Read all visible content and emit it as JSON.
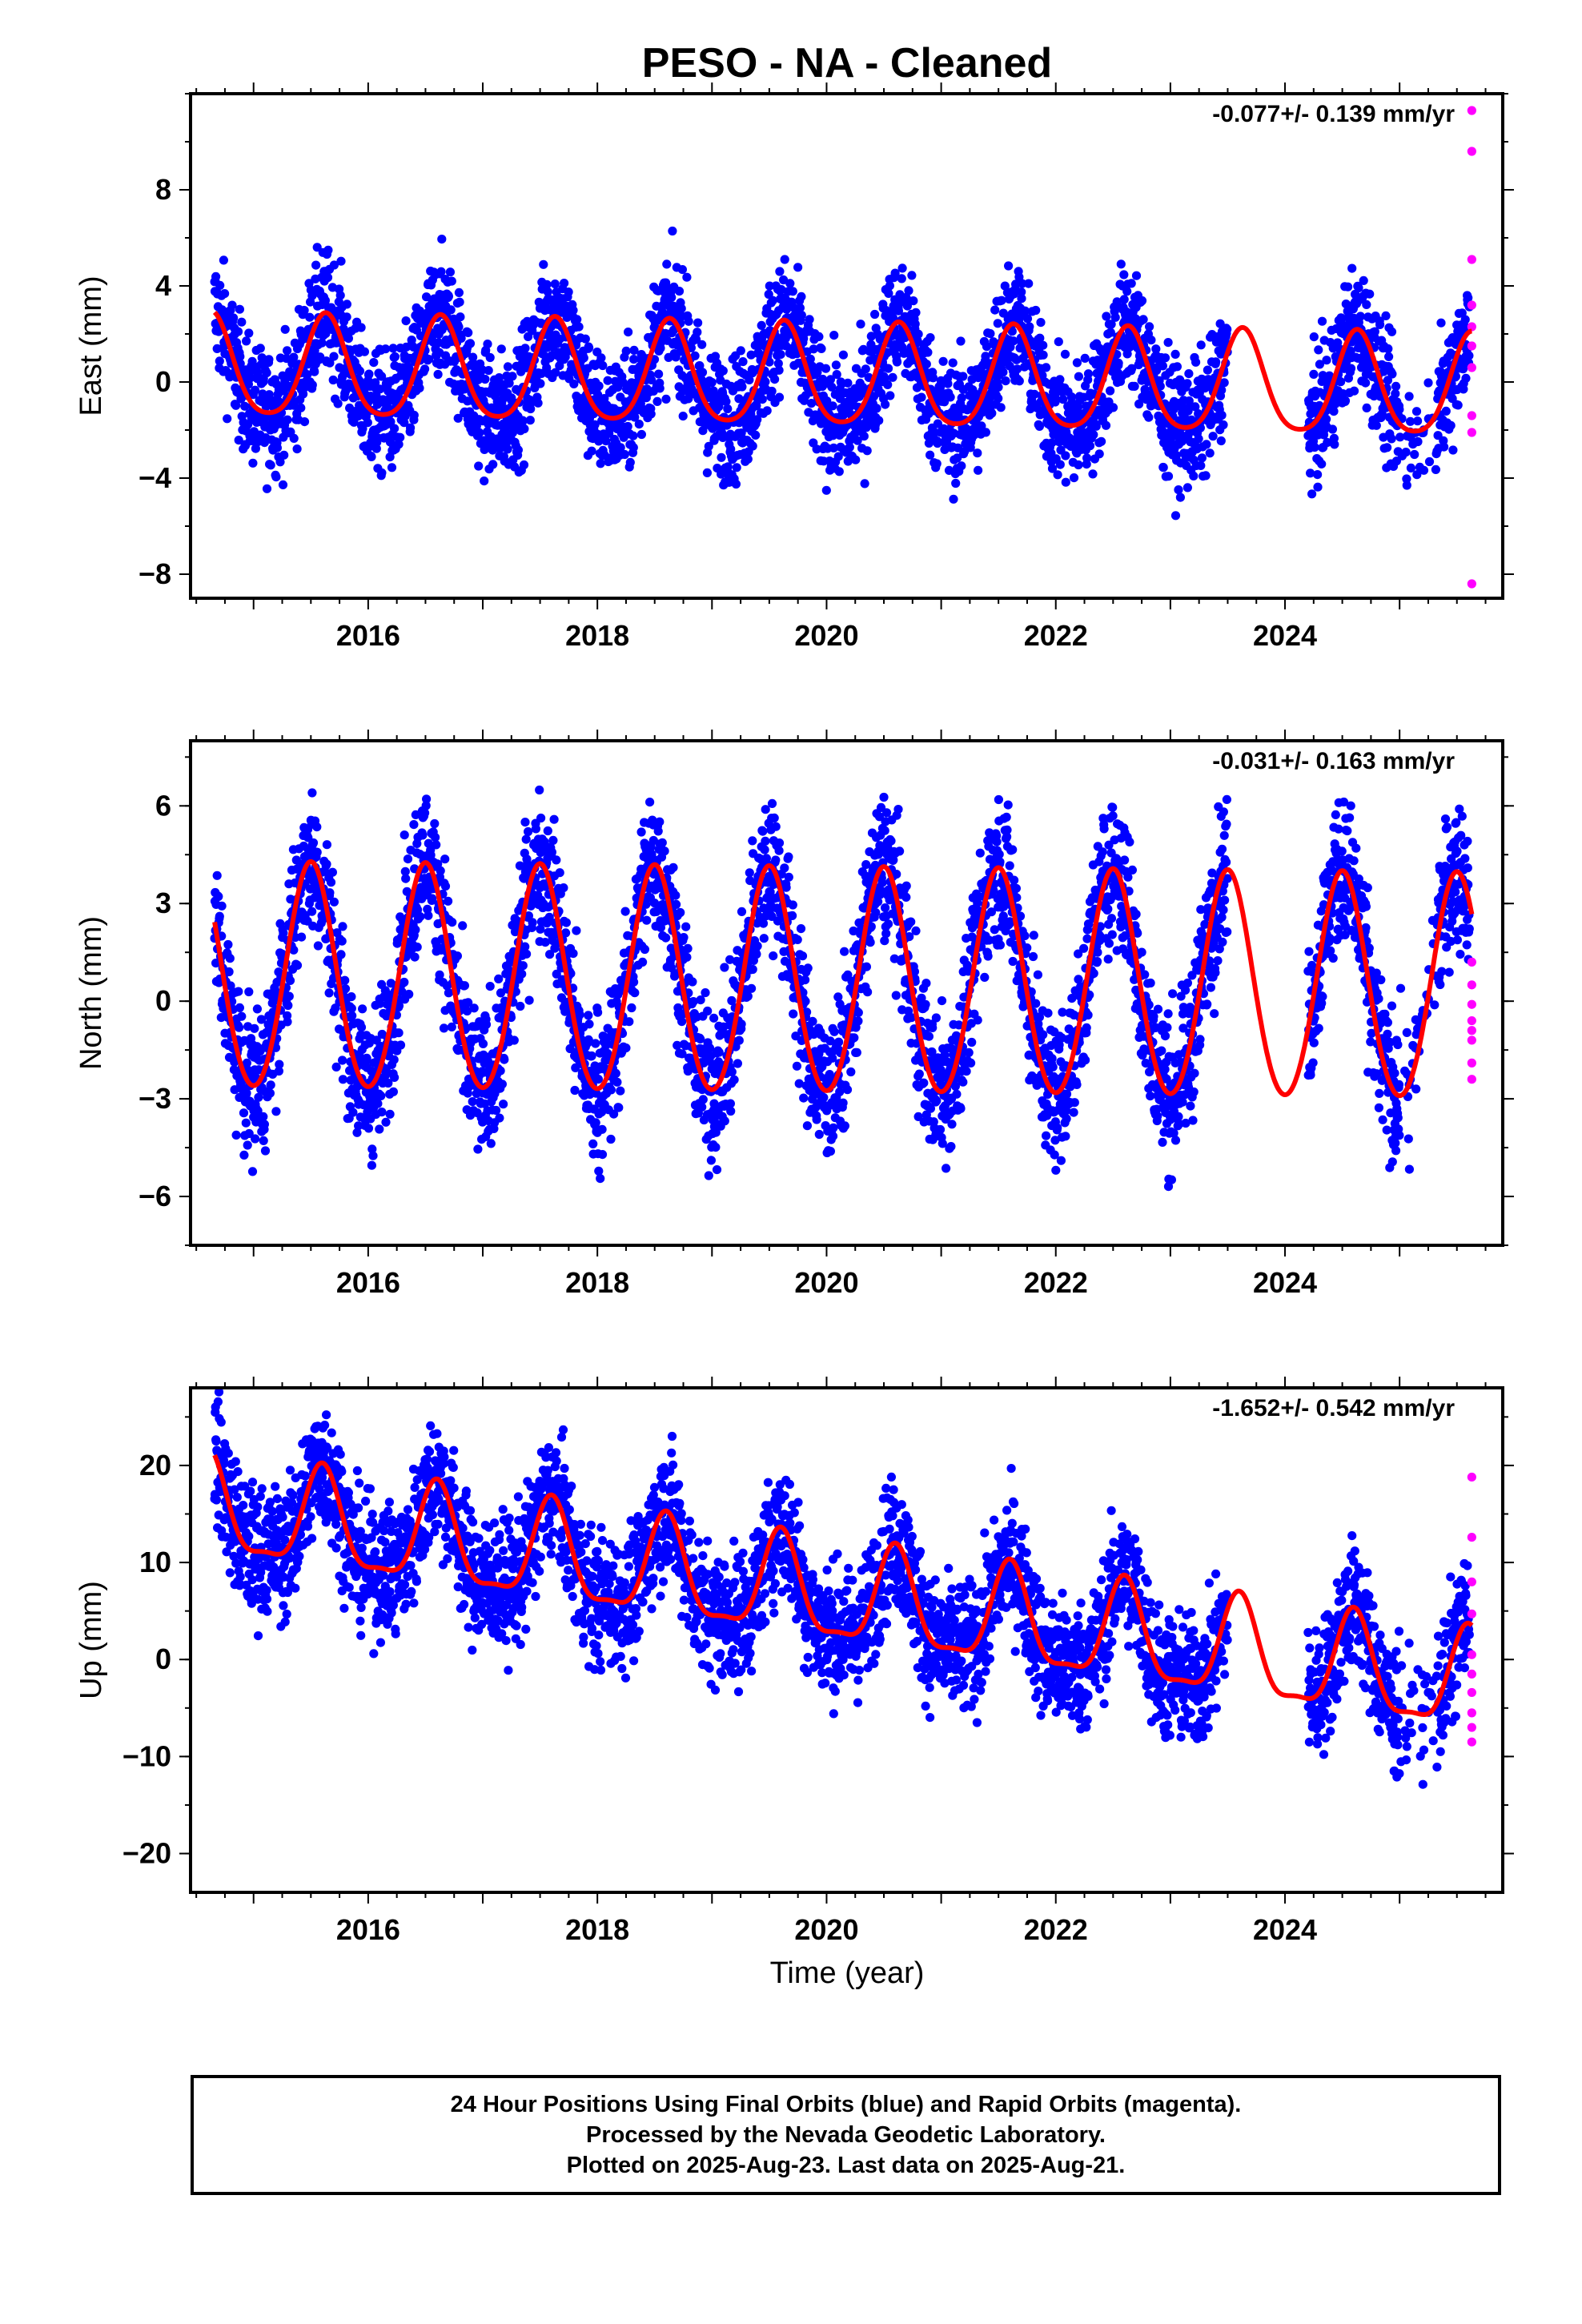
{
  "title": "PESO  - NA - Cleaned",
  "colors": {
    "final_orbits": "#0000ff",
    "rapid_orbits": "#ff00ff",
    "model_fit": "#ff0000",
    "frame": "#000000"
  },
  "x_axis_label": "Time (year)",
  "footer": {
    "line1": "24 Hour Positions Using Final Orbits (blue) and Rapid Orbits (magenta).",
    "line2": "Processed by the Nevada Geodetic Laboratory.",
    "line3": "Plotted on 2025-Aug-23. Last data on 2025-Aug-21."
  },
  "chart_data": [
    {
      "type": "scatter",
      "component": "east",
      "ylabel": "East (mm)",
      "rate_text": "-0.077+/- 0.139 mm/yr",
      "xlim": [
        2014.45,
        2025.9
      ],
      "ylim": [
        -9,
        12
      ],
      "x_ticks": [
        2016,
        2018,
        2020,
        2022,
        2024
      ],
      "y_ticks": [
        -8,
        -4,
        0,
        4,
        8
      ],
      "data_span": [
        2014.66,
        2025.63
      ],
      "gap": [
        2023.5,
        2024.2
      ],
      "scatter_noise_mm": 1.25,
      "model": {
        "offset": 0.1,
        "trend": -0.077,
        "annual_amp": 2.1,
        "annual_peak_phase": 0.63,
        "semiannual_amp": 0.35
      },
      "rapid_points": [
        {
          "x": 2025.63,
          "y": 11.3
        },
        {
          "x": 2025.63,
          "y": 9.6
        },
        {
          "x": 2025.63,
          "y": 5.1
        },
        {
          "x": 2025.63,
          "y": 3.2
        },
        {
          "x": 2025.63,
          "y": 2.3
        },
        {
          "x": 2025.63,
          "y": 1.5
        },
        {
          "x": 2025.63,
          "y": 0.6
        },
        {
          "x": 2025.63,
          "y": -1.4
        },
        {
          "x": 2025.63,
          "y": -2.1
        },
        {
          "x": 2025.63,
          "y": -8.4
        }
      ]
    },
    {
      "type": "scatter",
      "component": "north",
      "ylabel": "North (mm)",
      "rate_text": "-0.031+/- 0.163 mm/yr",
      "xlim": [
        2014.45,
        2025.9
      ],
      "ylim": [
        -7.5,
        8
      ],
      "x_ticks": [
        2016,
        2018,
        2020,
        2022,
        2024
      ],
      "y_ticks": [
        -6,
        -3,
        0,
        3,
        6
      ],
      "data_span": [
        2014.66,
        2025.63
      ],
      "gap": [
        2023.5,
        2024.2
      ],
      "scatter_noise_mm": 1.1,
      "model": {
        "offset": 0.5,
        "trend": -0.031,
        "annual_amp": 3.45,
        "annual_peak_phase": 0.5,
        "semiannual_amp": 0.2
      },
      "rapid_points": [
        {
          "x": 2025.63,
          "y": 1.2
        },
        {
          "x": 2025.63,
          "y": 0.5
        },
        {
          "x": 2025.63,
          "y": -0.1
        },
        {
          "x": 2025.63,
          "y": -0.6
        },
        {
          "x": 2025.63,
          "y": -1.2
        },
        {
          "x": 2025.63,
          "y": -1.9
        },
        {
          "x": 2025.63,
          "y": -2.4
        },
        {
          "x": 2025.63,
          "y": -0.9
        }
      ]
    },
    {
      "type": "scatter",
      "component": "up",
      "ylabel": "Up (mm)",
      "rate_text": "-1.652+/- 0.542 mm/yr",
      "xlim": [
        2014.45,
        2025.9
      ],
      "ylim": [
        -24,
        28
      ],
      "x_ticks": [
        2016,
        2018,
        2020,
        2022,
        2024
      ],
      "y_ticks": [
        -20,
        -10,
        0,
        10,
        20
      ],
      "data_span": [
        2014.66,
        2025.63
      ],
      "gap": [
        2023.5,
        2024.2
      ],
      "scatter_noise_mm": 3.3,
      "model": {
        "offset": 6.5,
        "trend": -1.652,
        "annual_amp": 5.0,
        "annual_peak_phase": 0.6,
        "semiannual_amp": 1.5
      },
      "rapid_points": [
        {
          "x": 2025.63,
          "y": 18.8
        },
        {
          "x": 2025.63,
          "y": 12.6
        },
        {
          "x": 2025.63,
          "y": 8.0
        },
        {
          "x": 2025.63,
          "y": 4.7
        },
        {
          "x": 2025.63,
          "y": 0.5
        },
        {
          "x": 2025.63,
          "y": -1.5
        },
        {
          "x": 2025.63,
          "y": -3.4
        },
        {
          "x": 2025.63,
          "y": -5.5
        },
        {
          "x": 2025.63,
          "y": -7.0
        },
        {
          "x": 2025.63,
          "y": -8.5
        }
      ]
    }
  ]
}
